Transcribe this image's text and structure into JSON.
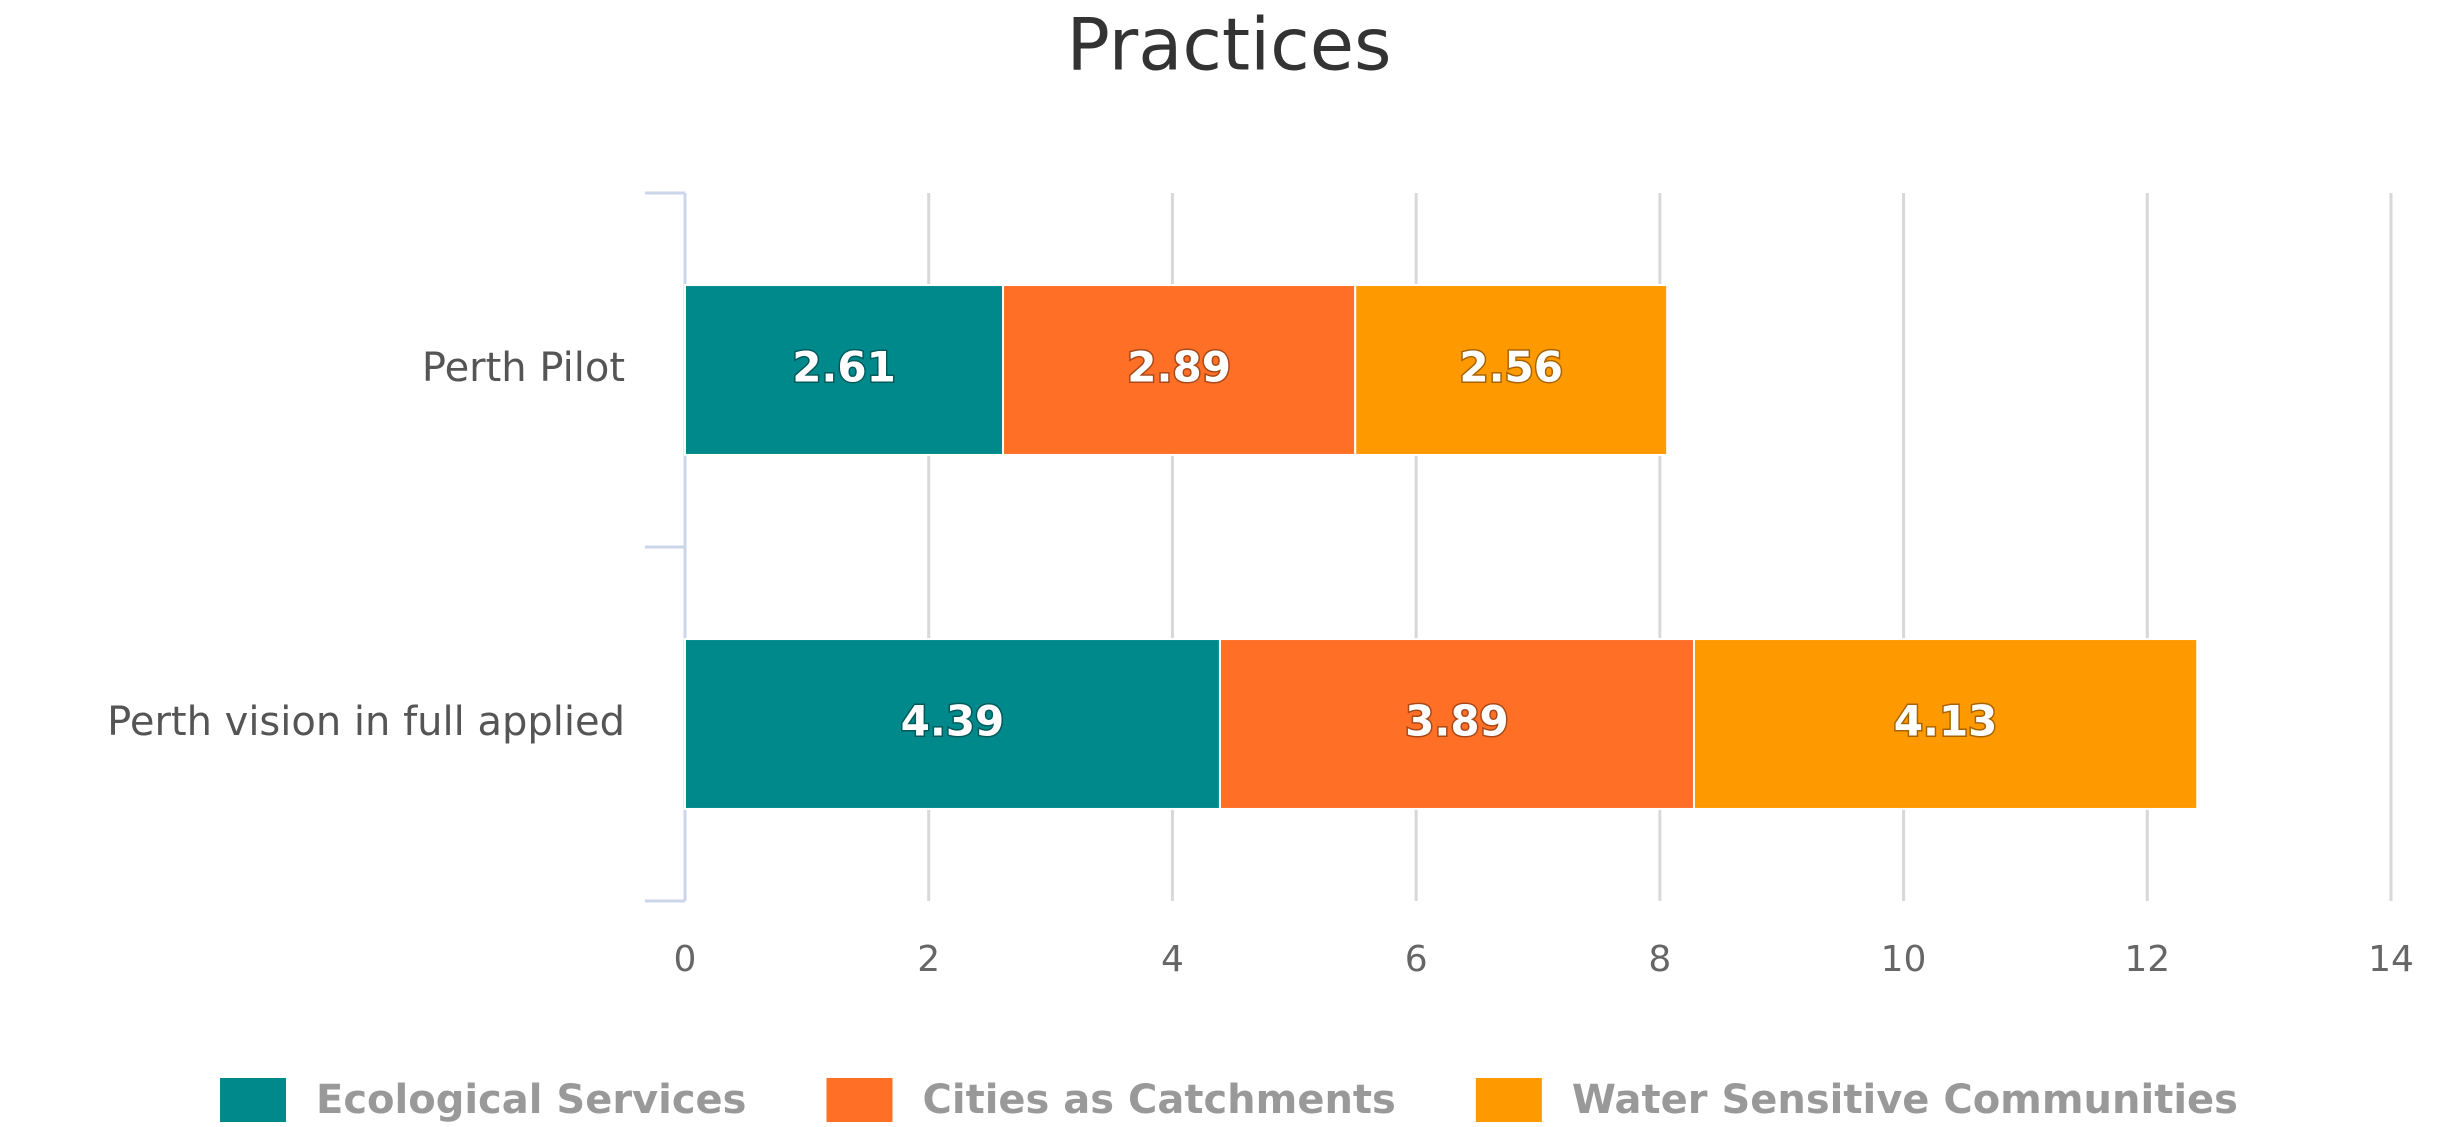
{
  "chart_data": {
    "type": "stacked-bar-horizontal",
    "title": "Practices",
    "categories": [
      "Perth Pilot",
      "Perth vision in full applied"
    ],
    "series": [
      {
        "name": "Ecological Services",
        "color": "#00898b",
        "values": [
          2.61,
          4.39
        ]
      },
      {
        "name": "Cities as Catchments",
        "color": "#ff6f26",
        "values": [
          2.89,
          3.89
        ]
      },
      {
        "name": "Water Sensitive Communities",
        "color": "#ff9900",
        "values": [
          2.56,
          4.13
        ]
      }
    ],
    "xlim": [
      0,
      14
    ],
    "xticks": [
      0,
      2,
      4,
      6,
      8,
      10,
      12,
      14
    ],
    "grid": true,
    "legend": "bottom"
  }
}
